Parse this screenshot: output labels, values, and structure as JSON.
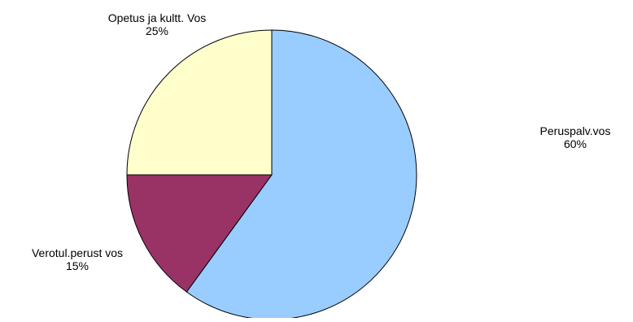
{
  "chart_data": {
    "type": "pie",
    "title": "",
    "slices": [
      {
        "label": "Peruspalv.vos",
        "value": 60,
        "value_label": "60%",
        "color": "#99CCFF"
      },
      {
        "label": "Verotul.perust vos",
        "value": 15,
        "value_label": "15%",
        "color": "#993366"
      },
      {
        "label": "Opetus ja kultt. Vos",
        "value": 25,
        "value_label": "25%",
        "color": "#FFFFCC"
      }
    ],
    "start": "12 o'clock",
    "direction": "clockwise",
    "outline_color": "#000000",
    "legend": "none"
  }
}
